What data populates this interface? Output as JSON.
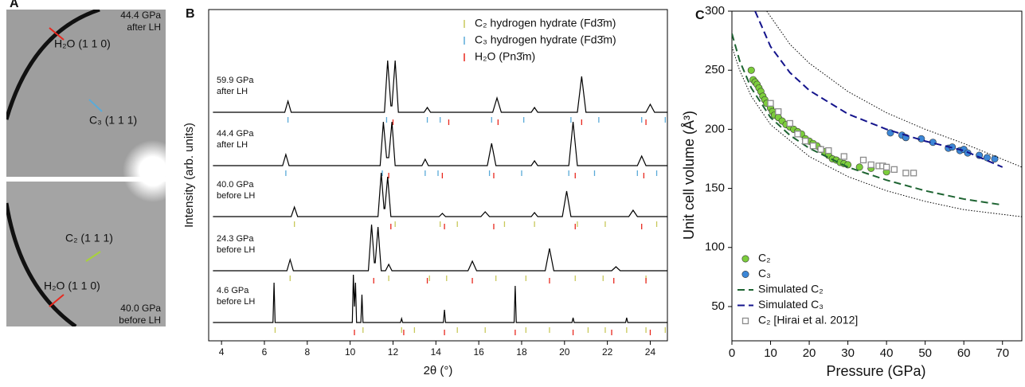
{
  "image_panel": {
    "panel": "A",
    "images": [
      {
        "caption": [
          "44.4 GPa",
          "after LH"
        ],
        "annotations": [
          {
            "text": "H₂O (1 1 0)",
            "color": "#e8281e"
          },
          {
            "text": "C₃ (1 1 1)",
            "color": "#5aaad8"
          }
        ]
      },
      {
        "caption": [
          "40.0 GPa",
          "before LH"
        ],
        "annotations": [
          {
            "text": "C₂ (1 1 1)",
            "color": "#a8d23c"
          },
          {
            "text": "H₂O (1 1 0)",
            "color": "#e8281e"
          }
        ]
      }
    ]
  },
  "chart_data": [
    {
      "type": "line",
      "panel": "B",
      "x_label": "2θ (°)",
      "y_label": "Intensity (arb. units)",
      "xlim": [
        3.4,
        24.8
      ],
      "xticks": [
        4,
        6,
        8,
        10,
        12,
        14,
        16,
        18,
        20,
        22,
        24
      ],
      "color": "#000000",
      "reflection_sets": [
        {
          "name": "C₂ hydrogen hydrate (Fd3̄m)",
          "color": "#c8c85a"
        },
        {
          "name": "C₃ hydrogen hydrate (Fd3̄m)",
          "color": "#5aaad8"
        },
        {
          "name": "H₂O (Pn3̄m)",
          "color": "#e8281e"
        }
      ],
      "series": [
        {
          "label": [
            "59.9 GPa",
            "after LH"
          ],
          "x": [
            3.6,
            6.95,
            7.1,
            7.25,
            11.6,
            11.75,
            11.9,
            11.95,
            12.1,
            12.25,
            13.45,
            13.6,
            13.75,
            16.65,
            16.85,
            17.05,
            18.45,
            18.6,
            18.75,
            20.6,
            20.8,
            21.0,
            23.8,
            24.0,
            24.2,
            24.8
          ],
          "values": [
            0,
            0,
            14,
            0,
            0,
            65,
            8,
            8,
            65,
            0,
            0,
            6,
            0,
            0,
            18,
            0,
            0,
            6,
            0,
            0,
            45,
            0,
            0,
            10,
            0,
            0
          ],
          "reflections": [
            [],
            [
              7.1,
              11.7,
              13.6,
              14.2,
              16.6,
              18.1,
              20.3,
              21.6,
              23.6,
              24.7
            ],
            [
              12.0,
              14.6,
              16.9,
              20.8,
              23.8
            ]
          ]
        },
        {
          "label": [
            "44.4 GPa",
            "after LH"
          ],
          "x": [
            3.6,
            6.85,
            7.0,
            7.15,
            11.4,
            11.55,
            11.7,
            11.8,
            11.95,
            12.1,
            13.35,
            13.5,
            13.65,
            16.4,
            16.6,
            16.8,
            18.45,
            18.6,
            18.75,
            20.2,
            20.4,
            20.6,
            23.4,
            23.6,
            23.8,
            24.8
          ],
          "values": [
            0,
            0,
            14,
            0,
            0,
            55,
            10,
            10,
            55,
            0,
            0,
            8,
            0,
            0,
            28,
            0,
            0,
            6,
            0,
            0,
            55,
            0,
            0,
            12,
            0,
            0
          ],
          "reflections": [
            [],
            [
              7.0,
              11.5,
              13.5,
              14.1,
              16.5,
              18.0,
              20.2,
              21.4,
              23.4,
              24.3
            ],
            [
              11.8,
              14.3,
              16.7,
              20.5,
              23.7
            ]
          ]
        },
        {
          "label": [
            "40.0 GPa",
            "before LH"
          ],
          "x": [
            3.6,
            7.25,
            7.4,
            7.55,
            11.3,
            11.45,
            11.58,
            11.62,
            11.75,
            11.9,
            14.15,
            14.3,
            14.45,
            16.1,
            16.3,
            16.5,
            18.45,
            18.6,
            18.75,
            19.9,
            20.1,
            20.3,
            23.0,
            23.2,
            23.4,
            24.8
          ],
          "values": [
            0,
            0,
            12,
            0,
            0,
            55,
            10,
            10,
            50,
            0,
            0,
            4,
            0,
            0,
            6,
            0,
            0,
            5,
            0,
            0,
            32,
            0,
            0,
            8,
            0,
            0
          ],
          "reflections": [
            [
              7.4,
              12.1,
              14.2,
              15.0,
              17.2,
              18.6,
              20.6,
              21.9,
              24.3
            ],
            [],
            [
              11.9,
              14.4,
              16.7,
              20.5,
              23.6
            ]
          ]
        },
        {
          "label": [
            "24.3 GPa",
            "before LH"
          ],
          "x": [
            3.6,
            7.05,
            7.2,
            7.35,
            10.85,
            11.0,
            11.13,
            11.17,
            11.3,
            11.45,
            11.65,
            11.8,
            11.95,
            15.5,
            15.7,
            15.9,
            19.1,
            19.3,
            19.5,
            22.2,
            22.4,
            22.6,
            24.8
          ],
          "values": [
            0,
            0,
            14,
            0,
            0,
            58,
            10,
            10,
            55,
            0,
            0,
            8,
            0,
            0,
            12,
            0,
            0,
            28,
            0,
            0,
            5,
            0,
            0
          ],
          "reflections": [
            [
              7.2,
              11.8,
              13.7,
              14.5,
              16.8,
              18.2,
              20.5,
              21.8,
              23.8,
              24.9
            ],
            [],
            [
              11.1,
              13.6,
              15.7,
              19.3,
              22.3,
              23.8
            ]
          ]
        },
        {
          "label": [
            "4.6 GPa",
            "before LH"
          ],
          "x": [
            3.6,
            6.4,
            6.45,
            6.5,
            10.1,
            10.15,
            10.2,
            10.25,
            10.3,
            10.5,
            10.55,
            10.6,
            12.35,
            12.4,
            12.45,
            14.35,
            14.4,
            14.45,
            17.65,
            17.7,
            17.75,
            20.35,
            20.4,
            20.45,
            22.85,
            22.9,
            22.95,
            24.8
          ],
          "values": [
            0,
            0,
            50,
            0,
            0,
            60,
            20,
            50,
            0,
            0,
            35,
            0,
            0,
            5,
            0,
            0,
            16,
            0,
            0,
            46,
            0,
            0,
            6,
            0,
            0,
            6,
            0,
            0
          ],
          "reflections": [
            [
              6.5,
              10.6,
              12.4,
              13.0,
              15.0,
              16.3,
              18.2,
              19.3,
              21.1,
              21.9,
              22.9,
              23.8,
              24.7
            ],
            [],
            [
              10.2,
              12.5,
              14.4,
              17.7,
              20.4,
              22.2,
              24.0
            ]
          ]
        }
      ]
    },
    {
      "type": "scatter",
      "panel": "C",
      "x_label": "Pressure (GPa)",
      "y_label": "Unit cell volume (Å³)",
      "xlim": [
        0,
        75
      ],
      "ylim": [
        21,
        300
      ],
      "xticks": [
        0,
        10,
        20,
        30,
        40,
        50,
        60,
        70
      ],
      "yticks": [
        50,
        100,
        150,
        200,
        250,
        300
      ],
      "series": [
        {
          "name": "C₂",
          "color": "#7ccd3c",
          "marker": "circle",
          "x": [
            5,
            5.5,
            6,
            6.5,
            7,
            7.5,
            8,
            8.5,
            9,
            10,
            10.5,
            11,
            12,
            13,
            14,
            15,
            16,
            17,
            18,
            19,
            20,
            21,
            22,
            23,
            24,
            25,
            26,
            27,
            28,
            29,
            30,
            33,
            36,
            40
          ],
          "values": [
            250,
            242,
            240,
            238,
            235,
            232,
            228,
            225,
            222,
            218,
            215,
            212,
            210,
            207,
            204,
            202,
            200,
            198,
            196,
            192,
            190,
            188,
            186,
            183,
            181,
            178,
            175,
            174,
            172,
            171,
            170,
            168,
            167,
            164
          ]
        },
        {
          "name": "C₃",
          "color": "#3c87d7",
          "marker": "circle",
          "x": [
            41,
            44,
            45,
            49,
            52,
            56,
            57,
            59,
            60,
            61,
            64,
            66,
            68
          ],
          "values": [
            197,
            195,
            193,
            192,
            189,
            184,
            185,
            182,
            183,
            180,
            178,
            176,
            175
          ]
        },
        {
          "name": "Simulated C₂",
          "color": "#1e6432",
          "marker": "line",
          "dash": "dashed",
          "x": [
            0,
            2,
            5,
            10,
            15,
            20,
            30,
            40,
            50,
            60,
            70
          ],
          "values": [
            281,
            258,
            235,
            210,
            195,
            184,
            168,
            157,
            148,
            141,
            136
          ]
        },
        {
          "name": "Simulated C₃",
          "color": "#14148c",
          "marker": "line",
          "dash": "dashed",
          "x": [
            6,
            10,
            15,
            20,
            30,
            40,
            50,
            60,
            70
          ],
          "values": [
            300,
            270,
            248,
            233,
            213,
            200,
            190,
            182,
            168
          ]
        },
        {
          "name": "C₂ [Hirai et al. 2012]",
          "color": "#8c8c8c",
          "marker": "square",
          "x": [
            10,
            12,
            15,
            17,
            19,
            21,
            23,
            25,
            29,
            34,
            36,
            38,
            39,
            40,
            42,
            45,
            47
          ],
          "values": [
            222,
            215,
            205,
            196,
            190,
            186,
            183,
            182,
            177,
            174,
            170,
            169,
            169,
            168,
            166,
            163,
            163
          ]
        },
        {
          "color": "#000000",
          "marker": "line",
          "dash": "dotted",
          "x": [
            9,
            15,
            20,
            30,
            40,
            50,
            60,
            75
          ],
          "values": [
            300,
            272,
            256,
            232,
            214,
            200,
            188,
            168
          ]
        },
        {
          "color": "#000000",
          "marker": "line",
          "dash": "dotted",
          "x": [
            0,
            2,
            5,
            10,
            20,
            30,
            40,
            50,
            60,
            75
          ],
          "values": [
            270,
            250,
            228,
            204,
            177,
            160,
            148,
            139,
            132,
            126
          ]
        }
      ]
    }
  ]
}
